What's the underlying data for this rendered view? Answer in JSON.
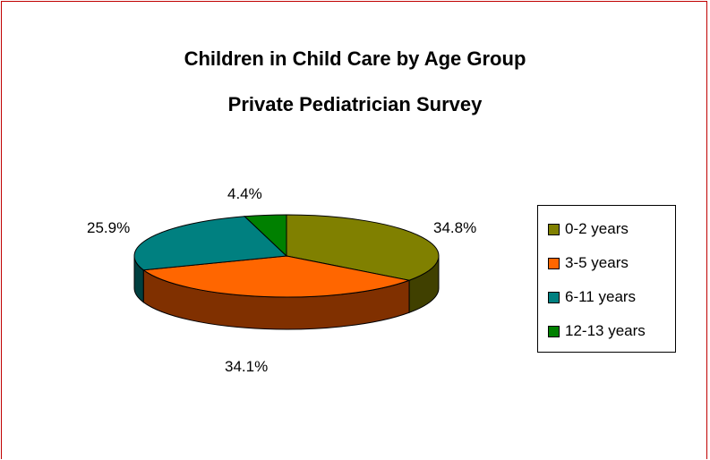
{
  "chart_data": {
    "type": "pie",
    "title": "Children in Child Care by Age Group",
    "subtitle": "Private Pediatrician Survey",
    "categories": [
      "0-2 years",
      "3-5 years",
      "6-11 years",
      "12-13 years"
    ],
    "values": [
      34.8,
      34.1,
      25.9,
      4.4
    ],
    "data_labels": [
      "34.8%",
      "34.1%",
      "25.9%",
      "4.4%"
    ],
    "colors": [
      "#808000",
      "#ff6600",
      "#008080",
      "#008000"
    ],
    "side_colors": [
      "#404000",
      "#803000",
      "#004040",
      "#004000"
    ],
    "legend": "right",
    "style": "3d"
  }
}
